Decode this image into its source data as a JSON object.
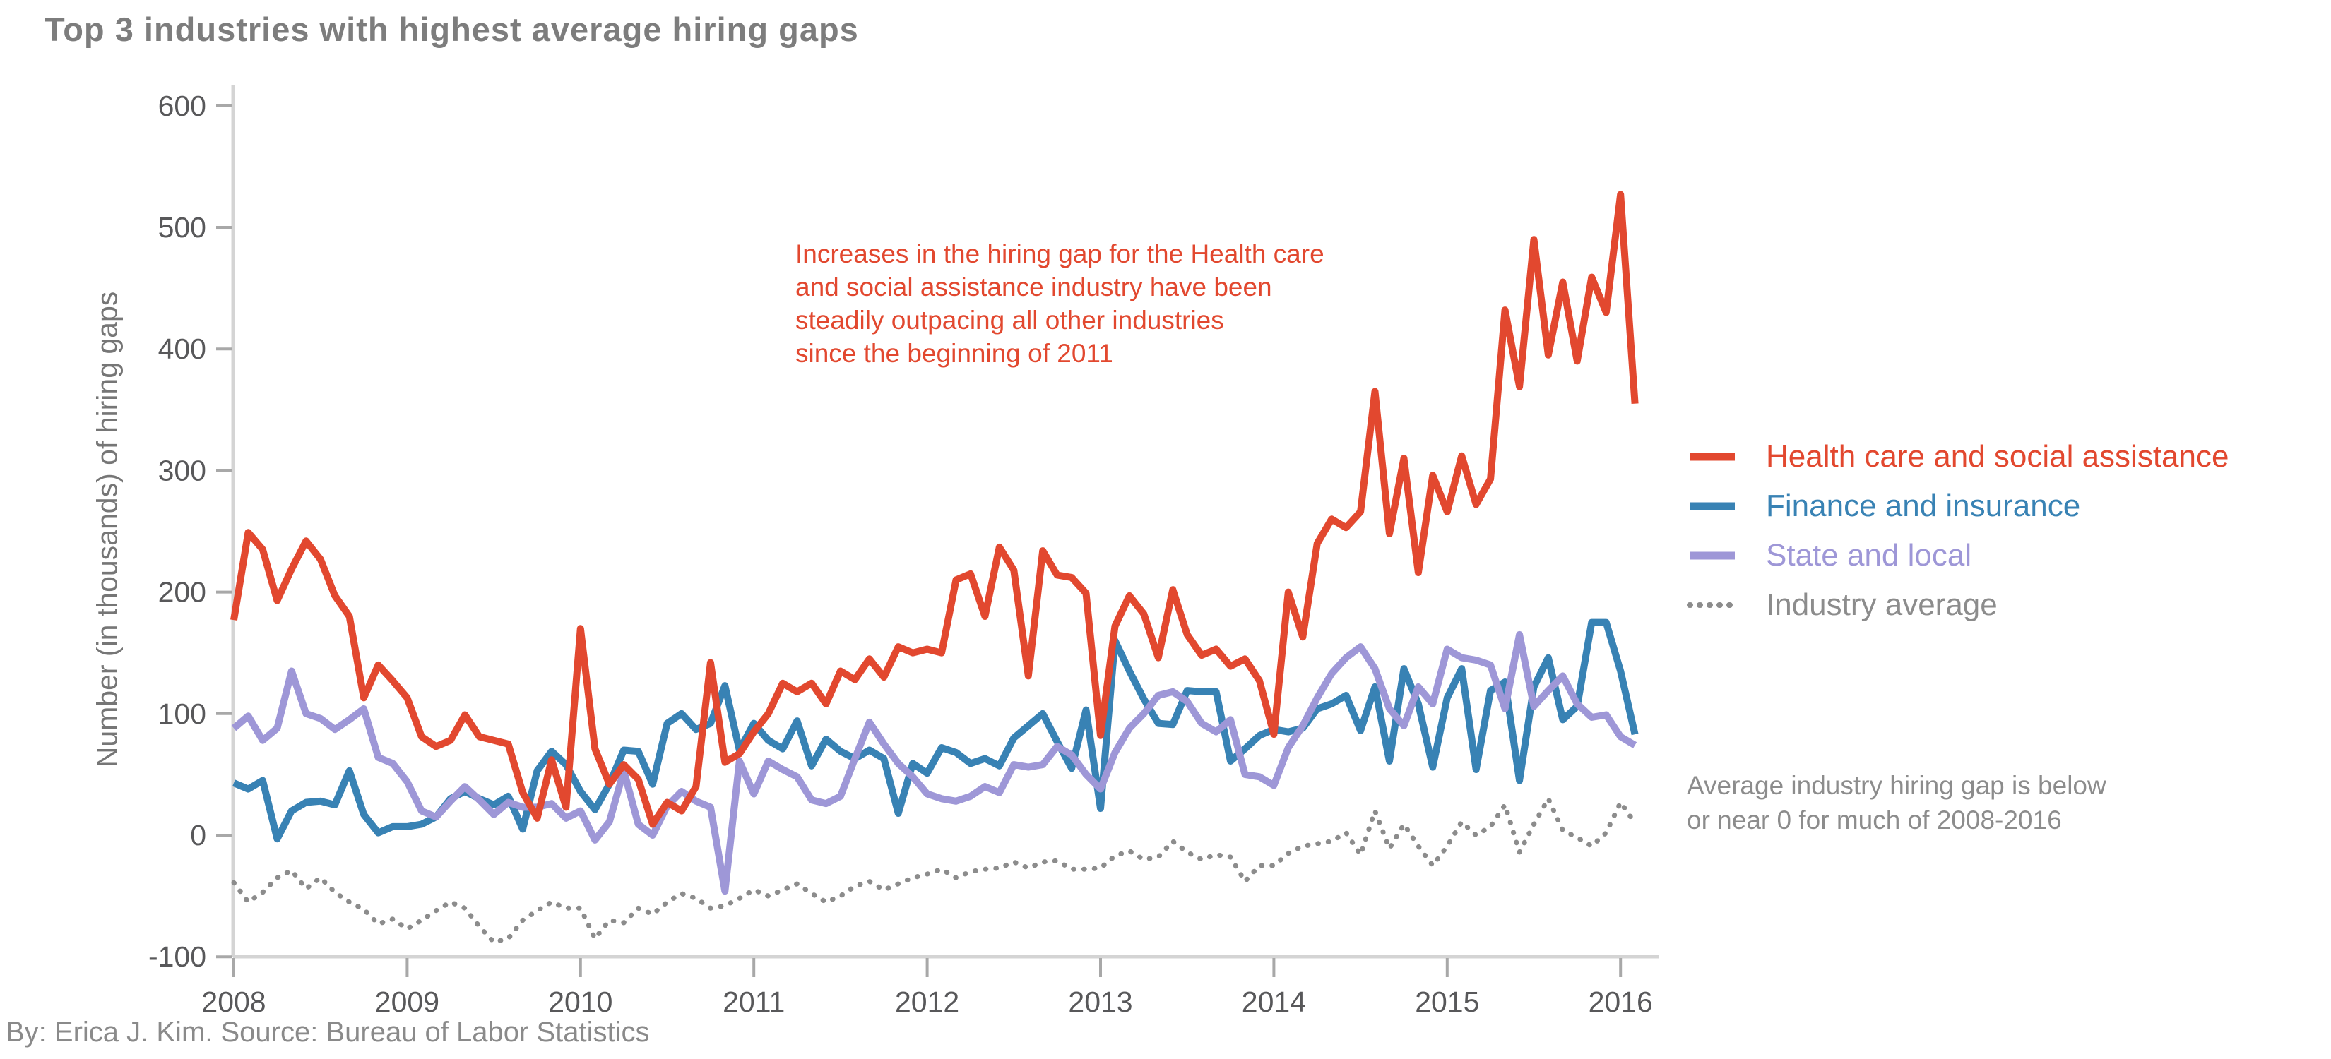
{
  "title": "Top 3 industries with highest average hiring gaps",
  "y_axis_label": "Number (in thousands) of hiring gaps",
  "footer": "By: Erica J. Kim. Source: Bureau of Labor Statistics",
  "annotations": {
    "healthcare": {
      "color": "#e2482f",
      "lines": [
        "Increases in the hiring gap for the Health care",
        "and social assistance industry have been",
        "steadily outpacing all other industries",
        "since the beginning of 2011"
      ]
    },
    "average": {
      "color": "#8c8c8c",
      "lines": [
        "Average industry hiring gap is below",
        "or near 0 for much of 2008-2016"
      ]
    }
  },
  "legend": {
    "items": [
      {
        "label": "Health care and social assistance",
        "color": "#e2482f",
        "style": "solid"
      },
      {
        "label": "Finance and insurance",
        "color": "#3882b4",
        "style": "solid"
      },
      {
        "label": "State and local",
        "color": "#9e97d7",
        "style": "solid"
      },
      {
        "label": "Industry average",
        "color": "#8c8c8c",
        "style": "dotted"
      }
    ]
  },
  "chart_data": {
    "type": "line",
    "title": "Top 3 industries with highest average hiring gaps",
    "xlabel": "",
    "ylabel": "Number (in thousands) of hiring gaps",
    "x_start": "2008-01",
    "x_end": "2016-02",
    "x_step_months": 1,
    "x_ticks": [
      2008,
      2009,
      2010,
      2011,
      2012,
      2013,
      2014,
      2015,
      2016
    ],
    "y_ticks": [
      -100,
      0,
      100,
      200,
      300,
      400,
      500,
      600
    ],
    "ylim": [
      -100,
      617
    ],
    "grid": false,
    "legend_position": "right",
    "series": [
      {
        "name": "Health care and social assistance",
        "id": "health-care-and-social-assistance",
        "color": "#e2482f",
        "dash": "solid",
        "values": [
          177,
          249,
          235,
          193,
          219,
          242,
          227,
          197,
          180,
          113,
          140,
          127,
          113,
          81,
          73,
          78,
          99,
          81,
          78,
          75,
          35,
          14,
          62,
          23,
          170,
          71,
          42,
          58,
          46,
          9,
          27,
          20,
          40,
          142,
          60,
          67,
          85,
          100,
          125,
          118,
          125,
          108,
          135,
          128,
          145,
          130,
          155,
          150,
          153,
          150,
          210,
          215,
          180,
          237,
          218,
          131,
          234,
          214,
          212,
          199,
          82,
          172,
          197,
          182,
          146,
          202,
          165,
          148,
          153,
          139,
          145,
          127,
          83,
          200,
          163,
          240,
          260,
          253,
          266,
          365,
          248,
          310,
          216,
          296,
          266,
          312,
          272,
          293,
          432,
          369,
          490,
          395,
          455,
          390,
          459,
          430,
          527,
          355
        ]
      },
      {
        "name": "Finance and insurance",
        "id": "finance-and-insurance",
        "color": "#3882b4",
        "dash": "solid",
        "values": [
          43,
          38,
          45,
          -3,
          20,
          27,
          28,
          25,
          53,
          17,
          2,
          7,
          7,
          9,
          15,
          30,
          36,
          30,
          25,
          32,
          5,
          53,
          69,
          58,
          36,
          21,
          42,
          70,
          69,
          42,
          92,
          100,
          87,
          92,
          123,
          70,
          92,
          78,
          71,
          94,
          57,
          79,
          69,
          63,
          70,
          63,
          18,
          59,
          51,
          72,
          68,
          59,
          63,
          57,
          80,
          90,
          100,
          77,
          55,
          103,
          22,
          160,
          135,
          112,
          92,
          91,
          119,
          118,
          118,
          61,
          71,
          82,
          87,
          85,
          88,
          104,
          108,
          115,
          86,
          122,
          61,
          137,
          108,
          56,
          113,
          137,
          54,
          119,
          126,
          45,
          122,
          146,
          95,
          106,
          175,
          175,
          135,
          83
        ]
      },
      {
        "name": "State and local",
        "id": "state-and-local",
        "color": "#9e97d7",
        "dash": "solid",
        "values": [
          88,
          98,
          78,
          88,
          135,
          100,
          96,
          87,
          95,
          104,
          64,
          59,
          44,
          20,
          15,
          28,
          40,
          29,
          17,
          27,
          23,
          23,
          26,
          14,
          20,
          -4,
          11,
          53,
          9,
          0,
          24,
          36,
          28,
          23,
          -46,
          61,
          34,
          61,
          54,
          48,
          29,
          26,
          32,
          63,
          93,
          75,
          59,
          48,
          34,
          30,
          28,
          32,
          40,
          35,
          58,
          56,
          58,
          73,
          66,
          50,
          38,
          68,
          88,
          100,
          115,
          118,
          110,
          92,
          85,
          95,
          50,
          48,
          41,
          72,
          90,
          113,
          133,
          146,
          155,
          137,
          104,
          90,
          122,
          108,
          153,
          146,
          144,
          140,
          104,
          165,
          106,
          119,
          131,
          108,
          97,
          99,
          81,
          74
        ]
      },
      {
        "name": "Industry average",
        "id": "industry-average",
        "color": "#8c8c8c",
        "dash": "dotted",
        "values": [
          -39,
          -55,
          -47,
          -35,
          -29,
          -44,
          -35,
          -47,
          -55,
          -61,
          -73,
          -69,
          -77,
          -70,
          -62,
          -55,
          -60,
          -75,
          -88,
          -85,
          -70,
          -62,
          -55,
          -60,
          -60,
          -85,
          -70,
          -72,
          -60,
          -65,
          -55,
          -48,
          -52,
          -60,
          -58,
          -52,
          -45,
          -50,
          -45,
          -40,
          -48,
          -55,
          -50,
          -42,
          -38,
          -45,
          -40,
          -35,
          -32,
          -28,
          -35,
          -30,
          -28,
          -27,
          -22,
          -27,
          -22,
          -21,
          -28,
          -28,
          -27,
          -17,
          -13,
          -20,
          -18,
          -5,
          -14,
          -20,
          -16,
          -18,
          -38,
          -25,
          -25,
          -15,
          -9,
          -7,
          -5,
          2,
          -16,
          20,
          -11,
          9,
          -9,
          -25,
          -9,
          11,
          0,
          7,
          25,
          -14,
          9,
          30,
          4,
          -2,
          -9,
          2,
          27,
          10
        ]
      }
    ]
  },
  "style": {
    "axis_line_color": "#d4d4d4",
    "tick_color": "#a8a8a8",
    "tick_label_color": "#58585a",
    "title_color": "#7d7d7d",
    "background": "#ffffff"
  }
}
